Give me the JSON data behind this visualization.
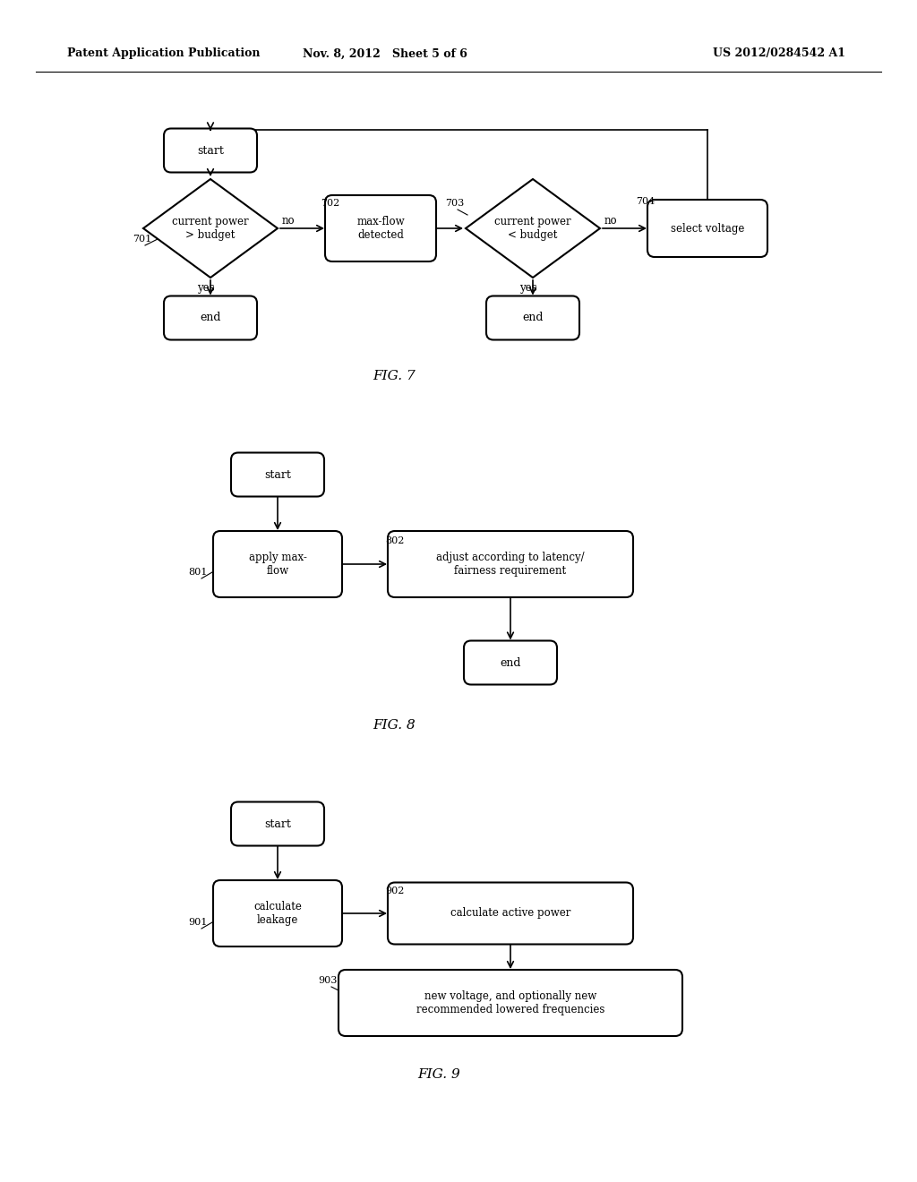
{
  "bg_color": "#ffffff",
  "header_left": "Patent Application Publication",
  "header_mid": "Nov. 8, 2012   Sheet 5 of 6",
  "header_right": "US 2012/0284542 A1"
}
